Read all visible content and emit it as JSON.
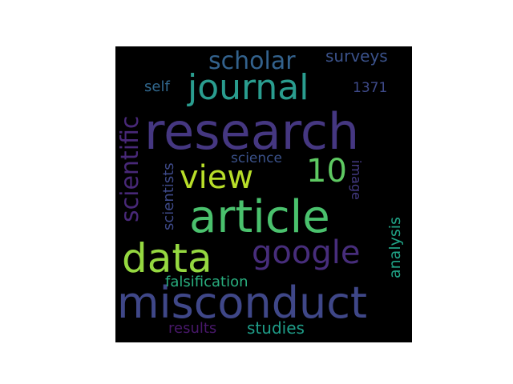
{
  "wordcloud": {
    "words": [
      {
        "key": "research",
        "text": "research",
        "color": "#453781"
      },
      {
        "key": "misconduct",
        "text": "misconduct",
        "color": "#3f4788"
      },
      {
        "key": "article",
        "text": "article",
        "color": "#4ac16d"
      },
      {
        "key": "data",
        "text": "data",
        "color": "#95d840"
      },
      {
        "key": "journal",
        "text": "journal",
        "color": "#2a9d8f"
      },
      {
        "key": "google",
        "text": "google",
        "color": "#472d7b"
      },
      {
        "key": "view",
        "text": "view",
        "color": "#b8de29"
      },
      {
        "key": "scholar",
        "text": "scholar",
        "color": "#33628d"
      },
      {
        "key": "scientific",
        "text": "scientific",
        "color": "#482878"
      },
      {
        "key": "ten",
        "text": "10",
        "color": "#5ec962"
      },
      {
        "key": "surveys",
        "text": "surveys",
        "color": "#3b528b"
      },
      {
        "key": "self",
        "text": "self",
        "color": "#31688e"
      },
      {
        "key": "n1371",
        "text": "1371",
        "color": "#3e4a89"
      },
      {
        "key": "science",
        "text": "science",
        "color": "#3b528b"
      },
      {
        "key": "scientists",
        "text": "scientists",
        "color": "#3e4a89"
      },
      {
        "key": "image",
        "text": "image",
        "color": "#443a83"
      },
      {
        "key": "analysis",
        "text": "analysis",
        "color": "#20a386"
      },
      {
        "key": "falsification",
        "text": "falsification",
        "color": "#29af7f"
      },
      {
        "key": "results",
        "text": "results",
        "color": "#48186a"
      },
      {
        "key": "studies",
        "text": "studies",
        "color": "#1f9e89"
      }
    ]
  }
}
